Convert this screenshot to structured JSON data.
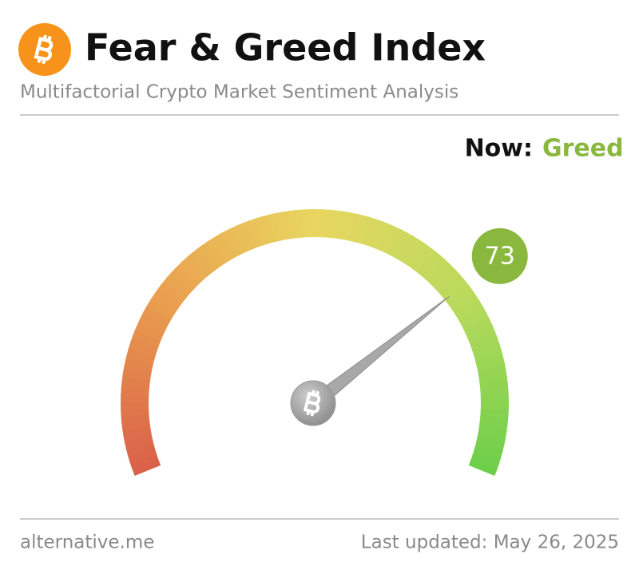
{
  "chart_data": {
    "type": "gauge",
    "title": "Fear & Greed Index",
    "subtitle": "Multifactorial Crypto Market Sentiment Analysis",
    "now_label": "Now:",
    "classification": "Greed",
    "value": 73,
    "ylim": [
      0,
      100
    ],
    "color": "#8ab83e",
    "source": "alternative.me",
    "last_updated": "Last updated: May 26, 2025"
  }
}
